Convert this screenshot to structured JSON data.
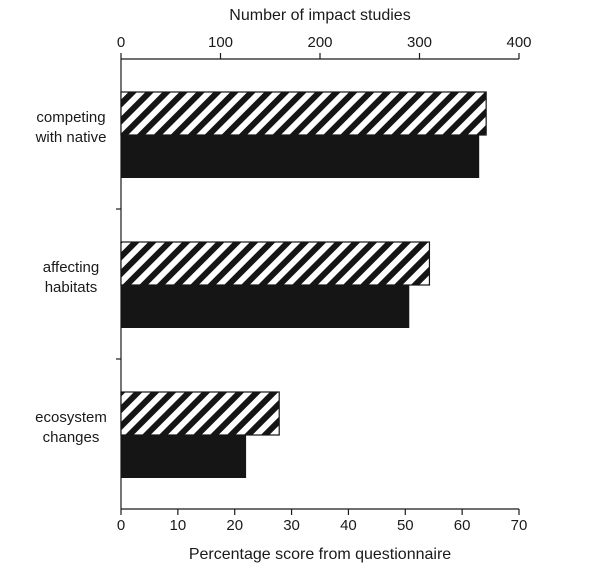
{
  "chart_data": {
    "type": "bar",
    "orientation": "horizontal",
    "categories": [
      [
        "competing",
        "with native"
      ],
      [
        "affecting",
        "habitats"
      ],
      [
        "ecosystem",
        "changes"
      ]
    ],
    "series": [
      {
        "axis": "top",
        "pattern": "diagonal-hatch",
        "values": [
          367,
          310,
          159
        ]
      },
      {
        "axis": "bottom",
        "pattern": "solid",
        "color": "#151515",
        "values": [
          63,
          50.7,
          22
        ]
      }
    ],
    "top_axis": {
      "label": "Number of impact studies",
      "range": [
        0,
        400
      ],
      "ticks": [
        0,
        100,
        200,
        300,
        400
      ]
    },
    "bottom_axis": {
      "label": "Percentage score from questionnaire",
      "range": [
        0,
        70
      ],
      "ticks": [
        0,
        10,
        20,
        30,
        40,
        50,
        60,
        70
      ]
    },
    "grid": false,
    "legend": "none"
  }
}
